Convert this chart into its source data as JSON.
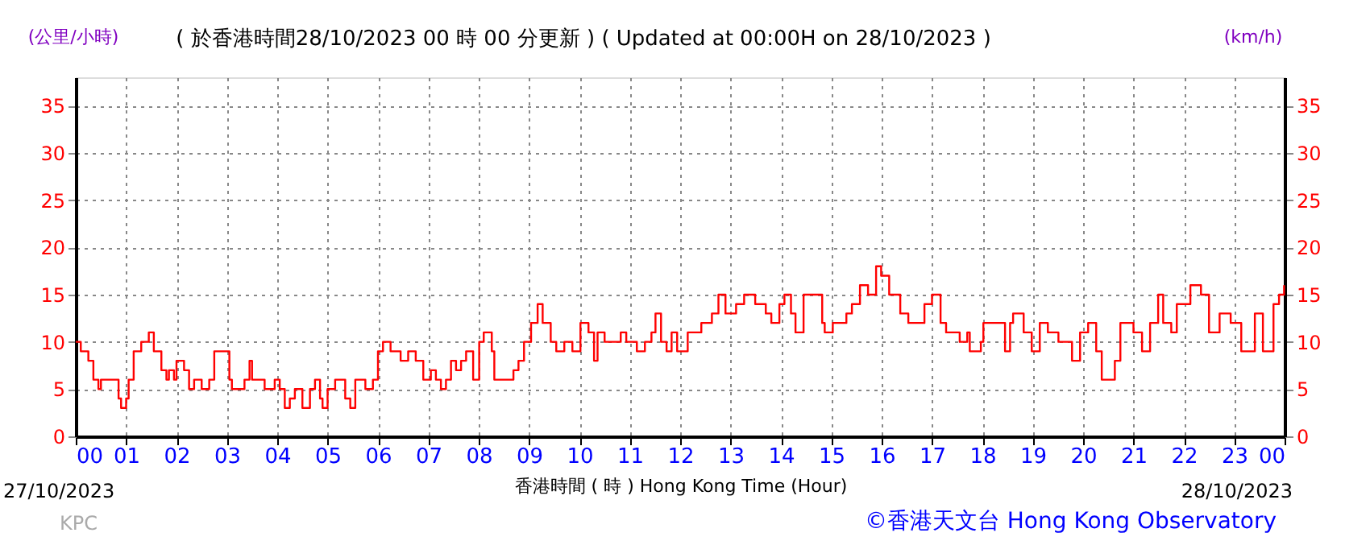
{
  "chart_data": {
    "type": "step",
    "title": "( 於香港時間28/10/2023 00 時 00 分更新 ) ( Updated at 00:00H on 28/10/2023 )",
    "xlabel": "香港時間 ( 時 )  Hong Kong Time (Hour)",
    "ylabel": "(公里/小時)",
    "y2label": "(km/h)",
    "annotations": [
      "27/10/2023",
      "28/10/2023",
      "KPC",
      "©香港天文台 Hong Kong Observatory"
    ],
    "xlim": [
      0,
      24
    ],
    "xticks": [
      {
        "value": 0,
        "label": "00"
      },
      {
        "value": 1,
        "label": "01"
      },
      {
        "value": 2,
        "label": "02"
      },
      {
        "value": 3,
        "label": "03"
      },
      {
        "value": 4,
        "label": "04"
      },
      {
        "value": 5,
        "label": "05"
      },
      {
        "value": 6,
        "label": "06"
      },
      {
        "value": 7,
        "label": "07"
      },
      {
        "value": 8,
        "label": "08"
      },
      {
        "value": 9,
        "label": "09"
      },
      {
        "value": 10,
        "label": "10"
      },
      {
        "value": 11,
        "label": "11"
      },
      {
        "value": 12,
        "label": "12"
      },
      {
        "value": 13,
        "label": "13"
      },
      {
        "value": 14,
        "label": "14"
      },
      {
        "value": 15,
        "label": "15"
      },
      {
        "value": 16,
        "label": "16"
      },
      {
        "value": 17,
        "label": "17"
      },
      {
        "value": 18,
        "label": "18"
      },
      {
        "value": 19,
        "label": "19"
      },
      {
        "value": 20,
        "label": "20"
      },
      {
        "value": 21,
        "label": "21"
      },
      {
        "value": 22,
        "label": "22"
      },
      {
        "value": 23,
        "label": "23"
      },
      {
        "value": 24,
        "label": "00"
      }
    ],
    "ylim": [
      0,
      38
    ],
    "yticks": [
      0,
      5,
      10,
      15,
      20,
      25,
      30,
      35
    ],
    "y2lim": [
      0,
      38
    ],
    "y2ticks": [
      0,
      5,
      10,
      15,
      20,
      25,
      30,
      35
    ],
    "grid": true,
    "line_style": "solid",
    "marker": "none",
    "series": [
      {
        "color": "#ff0000",
        "x": [
          0,
          0.1,
          0.25,
          0.35,
          0.45,
          0.5,
          0.85,
          0.9,
          1.0,
          1.05,
          1.15,
          1.3,
          1.45,
          1.55,
          1.7,
          1.8,
          1.85,
          1.95,
          2.0,
          2.15,
          2.25,
          2.35,
          2.5,
          2.65,
          2.75,
          3.05,
          3.1,
          3.35,
          3.45,
          3.5,
          3.75,
          3.95,
          4.05,
          4.15,
          4.25,
          4.35,
          4.5,
          4.65,
          4.75,
          4.85,
          4.9,
          5.0,
          5.15,
          5.35,
          5.45,
          5.55,
          5.75,
          5.9,
          6.0,
          6.1,
          6.25,
          6.45,
          6.6,
          6.75,
          6.9,
          7.05,
          7.15,
          7.25,
          7.35,
          7.45,
          7.55,
          7.65,
          7.75,
          7.89,
          8.01,
          8.1,
          8.26,
          8.31,
          8.58,
          8.69,
          8.79,
          8.9,
          9.04,
          9.17,
          9.27,
          9.43,
          9.54,
          9.7,
          9.86,
          10.02,
          10.18,
          10.29,
          10.36,
          10.5,
          10.82,
          10.93,
          11.14,
          11.3,
          11.43,
          11.51,
          11.62,
          11.73,
          11.83,
          11.94,
          12.15,
          12.42,
          12.63,
          12.76,
          12.9,
          13.11,
          13.27,
          13.49,
          13.7,
          13.81,
          13.97,
          14.07,
          14.2,
          14.29,
          14.45,
          14.66,
          14.82,
          14.87,
          15.03,
          15.3,
          15.41,
          15.57,
          15.73,
          15.89,
          15.99,
          16.15,
          16.37,
          16.53,
          16.63,
          16.85,
          17.0,
          17.17,
          17.28,
          17.49,
          17.55,
          17.7,
          17.75,
          17.97,
          18.02,
          18.39,
          18.45,
          18.55,
          18.61,
          18.82,
          18.98,
          19.14,
          19.3,
          19.51,
          19.67,
          19.78,
          19.94,
          20.1,
          20.26,
          20.37,
          20.53,
          20.63,
          20.74,
          21.0,
          21.17,
          21.33,
          21.49,
          21.59,
          21.75,
          21.86,
          22.13,
          22.34,
          22.5,
          22.71,
          22.93,
          23.14,
          23.41,
          23.57,
          23.78,
          23.89,
          23.99
        ],
        "values": [
          10,
          9,
          8,
          6,
          5,
          6,
          4,
          3,
          4,
          6,
          9,
          10,
          11,
          9,
          7,
          6,
          7,
          6,
          8,
          7,
          5,
          6,
          5,
          6,
          9,
          6,
          5,
          6,
          8,
          6,
          5,
          6,
          5,
          3,
          4,
          5,
          3,
          5,
          6,
          4,
          3,
          5,
          6,
          4,
          3,
          6,
          5,
          6,
          9,
          10,
          9,
          8,
          9,
          8,
          6,
          7,
          6,
          5,
          6,
          8,
          7,
          8,
          9,
          6,
          10,
          11,
          9,
          6,
          6,
          7,
          8,
          10,
          12,
          14,
          12,
          10,
          9,
          10,
          9,
          12,
          11,
          8,
          11,
          10,
          11,
          10,
          9,
          10,
          11,
          13,
          10,
          9,
          11,
          9,
          11,
          12,
          13,
          15,
          13,
          14,
          15,
          14,
          13,
          12,
          14,
          15,
          13,
          11,
          15,
          15,
          12,
          11,
          12,
          13,
          14,
          16,
          15,
          18,
          17,
          15,
          13,
          12,
          12,
          14,
          15,
          12,
          11,
          11,
          10,
          11,
          9,
          10,
          12,
          12,
          9,
          12,
          13,
          11,
          9,
          12,
          11,
          10,
          10,
          8,
          11,
          12,
          9,
          6,
          6,
          8,
          12,
          11,
          9,
          12,
          15,
          12,
          11,
          14,
          16,
          15,
          11,
          13,
          12,
          9,
          13,
          9,
          14,
          15,
          16
        ]
      }
    ]
  }
}
